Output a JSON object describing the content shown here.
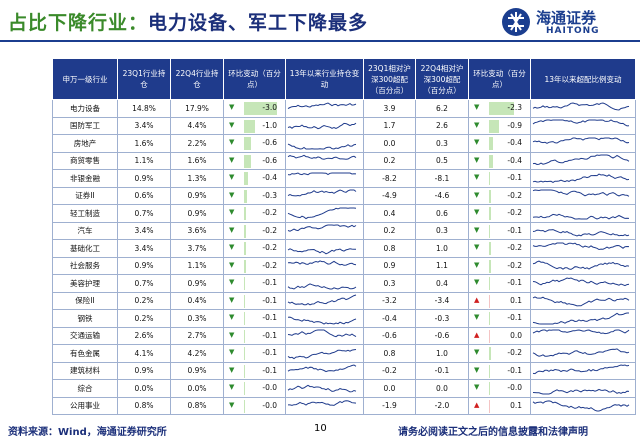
{
  "header": {
    "title_prefix": "占比下降行业：",
    "title_main": "电力设备、军工下降最多",
    "logo_cn": "海通证券",
    "logo_en": "HAITONG"
  },
  "table": {
    "columns": [
      "申万一级行业",
      "23Q1行业持仓",
      "22Q4行业持仓",
      "环比变动（百分点）",
      "13年以来行业持仓变动",
      "23Q1相对沪深300超配（百分点）",
      "22Q4相对沪深300超配（百分点）",
      "环比变动（百分点）",
      "13年以来超配比例变动"
    ],
    "rows": [
      [
        "电力设备",
        "14.8%",
        "17.9%",
        "-3.0",
        "3.9",
        "6.2",
        "-2.3"
      ],
      [
        "国防军工",
        "3.4%",
        "4.4%",
        "-1.0",
        "1.7",
        "2.6",
        "-0.9"
      ],
      [
        "房地产",
        "1.6%",
        "2.2%",
        "-0.6",
        "0.0",
        "0.3",
        "-0.4"
      ],
      [
        "商贸零售",
        "1.1%",
        "1.6%",
        "-0.6",
        "0.2",
        "0.5",
        "-0.4"
      ],
      [
        "非银金融",
        "0.9%",
        "1.3%",
        "-0.4",
        "-8.2",
        "-8.1",
        "-0.1"
      ],
      [
        "证券II",
        "0.6%",
        "0.9%",
        "-0.3",
        "-4.9",
        "-4.6",
        "-0.2"
      ],
      [
        "轻工制造",
        "0.7%",
        "0.9%",
        "-0.2",
        "0.4",
        "0.6",
        "-0.2"
      ],
      [
        "汽车",
        "3.4%",
        "3.6%",
        "-0.2",
        "0.2",
        "0.3",
        "-0.1"
      ],
      [
        "基础化工",
        "3.4%",
        "3.7%",
        "-0.2",
        "0.8",
        "1.0",
        "-0.2"
      ],
      [
        "社会服务",
        "0.9%",
        "1.1%",
        "-0.2",
        "0.9",
        "1.1",
        "-0.2"
      ],
      [
        "美容护理",
        "0.7%",
        "0.9%",
        "-0.1",
        "0.3",
        "0.4",
        "-0.1"
      ],
      [
        "保险II",
        "0.2%",
        "0.4%",
        "-0.1",
        "-3.2",
        "-3.4",
        "0.1"
      ],
      [
        "钢铁",
        "0.2%",
        "0.3%",
        "-0.1",
        "-0.4",
        "-0.3",
        "-0.1"
      ],
      [
        "交通运输",
        "2.6%",
        "2.7%",
        "-0.1",
        "-0.6",
        "-0.6",
        "0.0"
      ],
      [
        "有色金属",
        "4.1%",
        "4.2%",
        "-0.1",
        "0.8",
        "1.0",
        "-0.2"
      ],
      [
        "建筑材料",
        "0.9%",
        "0.9%",
        "-0.1",
        "-0.2",
        "-0.1",
        "-0.1"
      ],
      [
        "综合",
        "0.0%",
        "0.0%",
        "-0.0",
        "0.0",
        "0.0",
        "-0.0"
      ],
      [
        "公用事业",
        "0.8%",
        "0.8%",
        "-0.0",
        "-1.9",
        "-2.0",
        "0.1"
      ]
    ]
  },
  "footer": {
    "source": "资料来源：Wind，海通证券研究所",
    "page": "10",
    "disclaimer": "请务必阅读正文之后的信息披露和法律声明"
  }
}
